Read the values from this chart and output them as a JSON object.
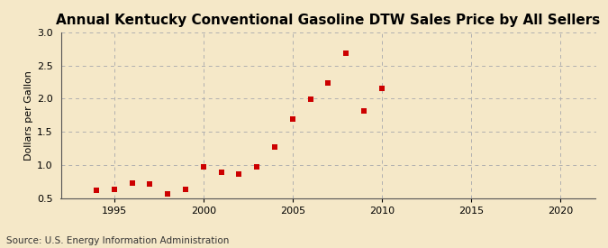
{
  "title": "Annual Kentucky Conventional Gasoline DTW Sales Price by All Sellers",
  "ylabel": "Dollars per Gallon",
  "source": "Source: U.S. Energy Information Administration",
  "background_color": "#f5e8c8",
  "years": [
    1994,
    1995,
    1996,
    1997,
    1998,
    1999,
    2000,
    2001,
    2002,
    2003,
    2004,
    2005,
    2006,
    2007,
    2008,
    2009,
    2010
  ],
  "values": [
    0.62,
    0.63,
    0.73,
    0.72,
    0.57,
    0.63,
    0.98,
    0.9,
    0.86,
    0.97,
    1.28,
    1.7,
    1.99,
    2.23,
    2.68,
    1.82,
    2.16
  ],
  "marker_color": "#cc0000",
  "marker_size": 4,
  "xlim": [
    1992,
    2022
  ],
  "ylim": [
    0.5,
    3.0
  ],
  "xticks": [
    1995,
    2000,
    2005,
    2010,
    2015,
    2020
  ],
  "yticks": [
    0.5,
    1.0,
    1.5,
    2.0,
    2.5,
    3.0
  ],
  "grid_color": "#b0b0b0",
  "vgrid_years": [
    1995,
    2000,
    2005,
    2010,
    2015,
    2020
  ],
  "title_fontsize": 11,
  "axis_fontsize": 8,
  "source_fontsize": 7.5
}
